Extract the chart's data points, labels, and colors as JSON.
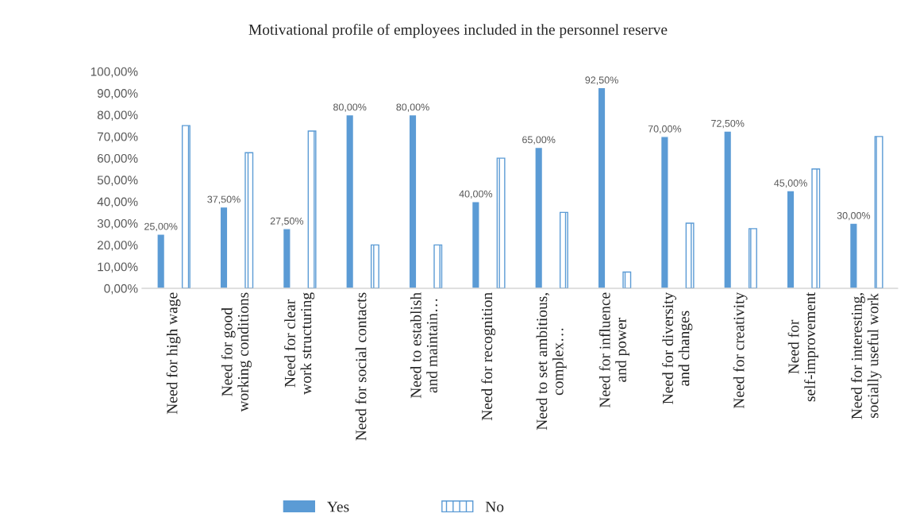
{
  "chart_data": {
    "type": "bar",
    "title": "Motivational profile of employees included in the personnel reserve",
    "categories": [
      "Need for high wage",
      "Need for good\nworking conditions",
      "Need for clear\nwork structuring",
      "Need for social contacts",
      "Need to establish\nand maintain…",
      "Need for recognition",
      "Need to set ambitious,\ncomplex…",
      "Need for influence\nand power",
      "Need for diversity\nand changes",
      "Need for creativity",
      "Need for\nself-improvement",
      "Need for interesting,\nsocially useful work"
    ],
    "series": [
      {
        "name": "Yes",
        "color": "#5b9bd5",
        "values": [
          25,
          37.5,
          27.5,
          80,
          80,
          40,
          65,
          92.5,
          70,
          72.5,
          45,
          30
        ],
        "value_labels": [
          "25,00%",
          "37,50%",
          "27,50%",
          "80,00%",
          "80,00%",
          "40,00%",
          "65,00%",
          "92,50%",
          "70,00%",
          "72,50%",
          "45,00%",
          "30,00%"
        ]
      },
      {
        "name": "No",
        "color": "#5b9bd5",
        "values": [
          75,
          62.5,
          72.5,
          20,
          20,
          60,
          35,
          7.5,
          30,
          27.5,
          55,
          70
        ]
      }
    ],
    "ylim": [
      0,
      100
    ],
    "yticks": [
      {
        "value": 0,
        "label": "0,00%"
      },
      {
        "value": 10,
        "label": "10,00%"
      },
      {
        "value": 20,
        "label": "20,00%"
      },
      {
        "value": 30,
        "label": "30,00%"
      },
      {
        "value": 40,
        "label": "40,00%"
      },
      {
        "value": 50,
        "label": "50,00%"
      },
      {
        "value": 60,
        "label": "60,00%"
      },
      {
        "value": 70,
        "label": "70,00%"
      },
      {
        "value": 80,
        "label": "80,00%"
      },
      {
        "value": 90,
        "label": "90,00%"
      },
      {
        "value": 100,
        "label": "100,00%"
      }
    ],
    "grid": false,
    "legend": "bottom"
  }
}
